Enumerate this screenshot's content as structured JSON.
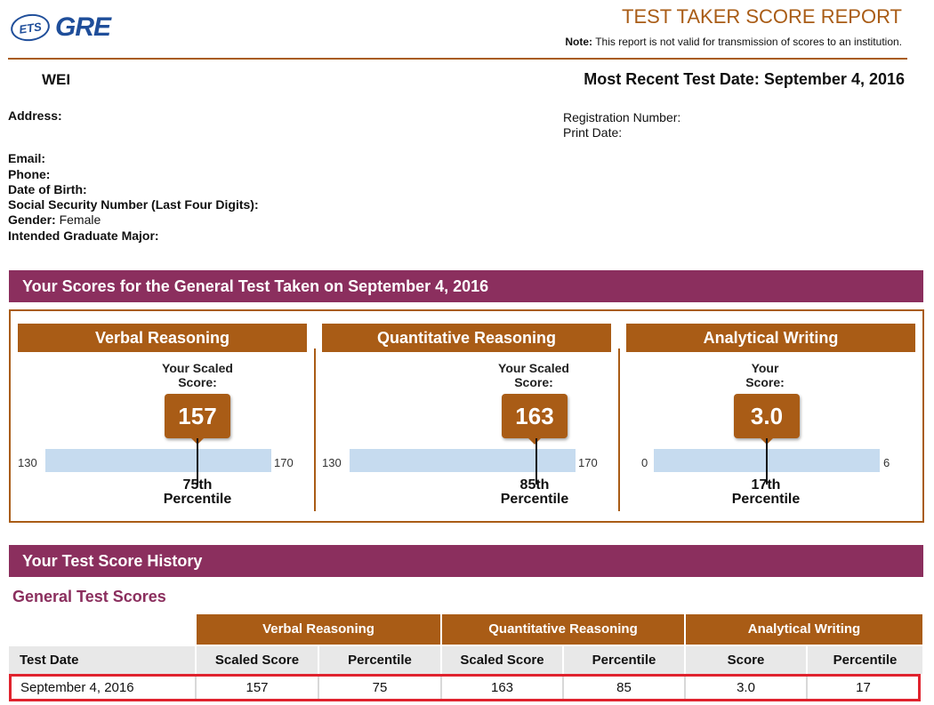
{
  "header": {
    "logo_ets": "ETS",
    "logo_gre": "GRE",
    "title": "TEST TAKER SCORE REPORT",
    "note_label": "Note:",
    "note_text": "This report is not valid for transmission of scores to an institution."
  },
  "taker": {
    "name": "WEI",
    "most_recent_test_date": "Most Recent Test Date: September 4, 2016",
    "address_label": "Address:",
    "email_label": "Email:",
    "phone_label": "Phone:",
    "dob_label": "Date of Birth:",
    "ssn_label": "Social Security Number (Last Four Digits):",
    "gender_label": "Gender:",
    "gender_value": "Female",
    "major_label": "Intended Graduate Major:",
    "registration_label": "Registration Number:",
    "print_date_label": "Print Date:"
  },
  "scores_section": {
    "title": "Your Scores for the General Test Taken on September 4, 2016",
    "panels": [
      {
        "name": "Verbal Reasoning",
        "label_line1": "Your Scaled",
        "label_line2": "Score:",
        "score": "157",
        "min": "130",
        "max": "170",
        "percentile": "75th",
        "percentile_word": "Percentile",
        "position_fraction": 0.675
      },
      {
        "name": "Quantitative Reasoning",
        "label_line1": "Your Scaled",
        "label_line2": "Score:",
        "score": "163",
        "min": "130",
        "max": "170",
        "percentile": "85th",
        "percentile_word": "Percentile",
        "position_fraction": 0.825
      },
      {
        "name": "Analytical Writing",
        "label_line1": "Your",
        "label_line2": "Score:",
        "score": "3.0",
        "min": "0",
        "max": "6",
        "percentile": "17th",
        "percentile_word": "Percentile",
        "position_fraction": 0.5
      }
    ]
  },
  "history_section": {
    "title": "Your Test Score History",
    "subtitle": "General Test Scores",
    "group_headers": [
      "Verbal Reasoning",
      "Quantitative Reasoning",
      "Analytical Writing"
    ],
    "columns": [
      "Test Date",
      "Scaled Score",
      "Percentile",
      "Scaled Score",
      "Percentile",
      "Score",
      "Percentile"
    ],
    "rows": [
      [
        "September 4, 2016",
        "157",
        "75",
        "163",
        "85",
        "3.0",
        "17"
      ]
    ]
  },
  "colors": {
    "brand_blue": "#1f4e9a",
    "accent_brown": "#a95c16",
    "section_purple": "#8b2f5e",
    "highlight_red": "#e0232e",
    "bar_blue": "#c6dbef"
  }
}
